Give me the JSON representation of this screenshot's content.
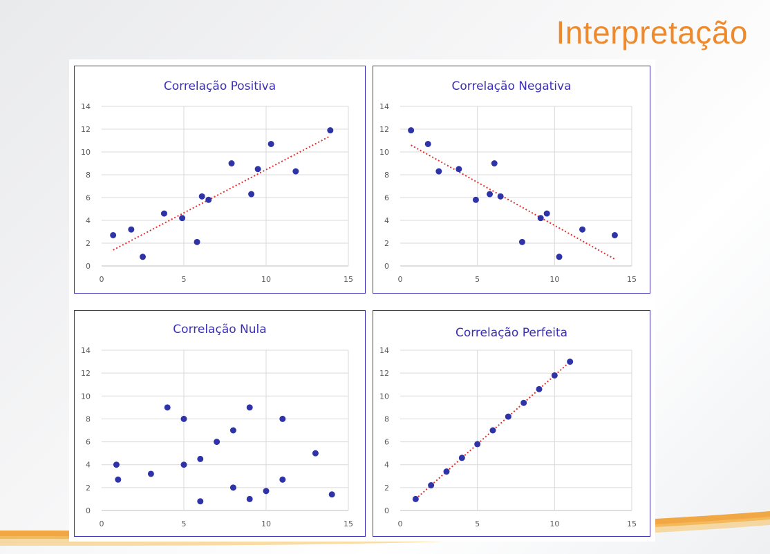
{
  "slide": {
    "title": "Interpretação"
  },
  "chart_data": [
    {
      "type": "scatter",
      "title": "Correlação Positiva",
      "xlim": [
        0,
        15
      ],
      "ylim": [
        0,
        14
      ],
      "xticks": [
        0,
        5,
        10,
        15
      ],
      "yticks": [
        0,
        2,
        4,
        6,
        8,
        10,
        12,
        14
      ],
      "grid": true,
      "points": [
        [
          0.7,
          2.7
        ],
        [
          1.8,
          3.2
        ],
        [
          2.5,
          0.8
        ],
        [
          3.8,
          4.6
        ],
        [
          4.9,
          4.2
        ],
        [
          5.8,
          2.1
        ],
        [
          6.1,
          6.1
        ],
        [
          6.5,
          5.8
        ],
        [
          7.9,
          9.0
        ],
        [
          9.1,
          6.3
        ],
        [
          9.5,
          8.5
        ],
        [
          10.3,
          10.7
        ],
        [
          11.8,
          8.3
        ],
        [
          13.9,
          11.9
        ]
      ],
      "trendline": [
        [
          0.7,
          1.4
        ],
        [
          13.9,
          11.4
        ]
      ]
    },
    {
      "type": "scatter",
      "title": "Correlação Negativa",
      "xlim": [
        0,
        15
      ],
      "ylim": [
        0,
        14
      ],
      "xticks": [
        0,
        5,
        10,
        15
      ],
      "yticks": [
        0,
        2,
        4,
        6,
        8,
        10,
        12,
        14
      ],
      "grid": true,
      "points": [
        [
          0.7,
          11.9
        ],
        [
          1.8,
          10.7
        ],
        [
          2.5,
          8.3
        ],
        [
          3.8,
          8.5
        ],
        [
          4.9,
          5.8
        ],
        [
          5.8,
          6.3
        ],
        [
          6.1,
          9.0
        ],
        [
          6.5,
          6.1
        ],
        [
          7.9,
          2.1
        ],
        [
          9.1,
          4.2
        ],
        [
          9.5,
          4.6
        ],
        [
          10.3,
          0.8
        ],
        [
          11.8,
          3.2
        ],
        [
          13.9,
          2.7
        ]
      ],
      "trendline": [
        [
          0.7,
          10.6
        ],
        [
          13.9,
          0.6
        ]
      ]
    },
    {
      "type": "scatter",
      "title": "Correlação Nula",
      "xlim": [
        0,
        15
      ],
      "ylim": [
        0,
        14
      ],
      "xticks": [
        0,
        5,
        10,
        15
      ],
      "yticks": [
        0,
        2,
        4,
        6,
        8,
        10,
        12,
        14
      ],
      "grid": true,
      "points": [
        [
          0.9,
          4.0
        ],
        [
          1.0,
          2.7
        ],
        [
          3.0,
          3.2
        ],
        [
          4.0,
          9.0
        ],
        [
          5.0,
          8.0
        ],
        [
          5.0,
          4.0
        ],
        [
          6.0,
          4.5
        ],
        [
          6.0,
          0.8
        ],
        [
          7.0,
          6.0
        ],
        [
          8.0,
          7.0
        ],
        [
          8.0,
          2.0
        ],
        [
          9.0,
          9.0
        ],
        [
          9.0,
          1.0
        ],
        [
          10.0,
          1.7
        ],
        [
          11.0,
          8.0
        ],
        [
          11.0,
          2.7
        ],
        [
          13.0,
          5.0
        ],
        [
          14.0,
          1.4
        ]
      ],
      "trendline": null
    },
    {
      "type": "scatter",
      "title": "Correlação Perfeita",
      "xlim": [
        0,
        15
      ],
      "ylim": [
        0,
        14
      ],
      "xticks": [
        0,
        5,
        10,
        15
      ],
      "yticks": [
        0,
        2,
        4,
        6,
        8,
        10,
        12,
        14
      ],
      "grid": true,
      "points": [
        [
          1,
          1.0
        ],
        [
          2,
          2.2
        ],
        [
          3,
          3.4
        ],
        [
          4,
          4.6
        ],
        [
          5,
          5.8
        ],
        [
          6,
          7.0
        ],
        [
          7,
          8.2
        ],
        [
          8,
          9.4
        ],
        [
          9,
          10.6
        ],
        [
          10,
          11.8
        ],
        [
          11,
          13.0
        ]
      ],
      "trendline": [
        [
          1,
          1.0
        ],
        [
          11,
          13.0
        ]
      ]
    }
  ],
  "colors": {
    "title": "#ee8a2e",
    "chart_title": "#3b2fb5",
    "point": "#2f33a8",
    "trendline": "#e03030",
    "frame": "#3b2fb5",
    "grid": "#d9d9d9",
    "tick_label": "#595959"
  }
}
